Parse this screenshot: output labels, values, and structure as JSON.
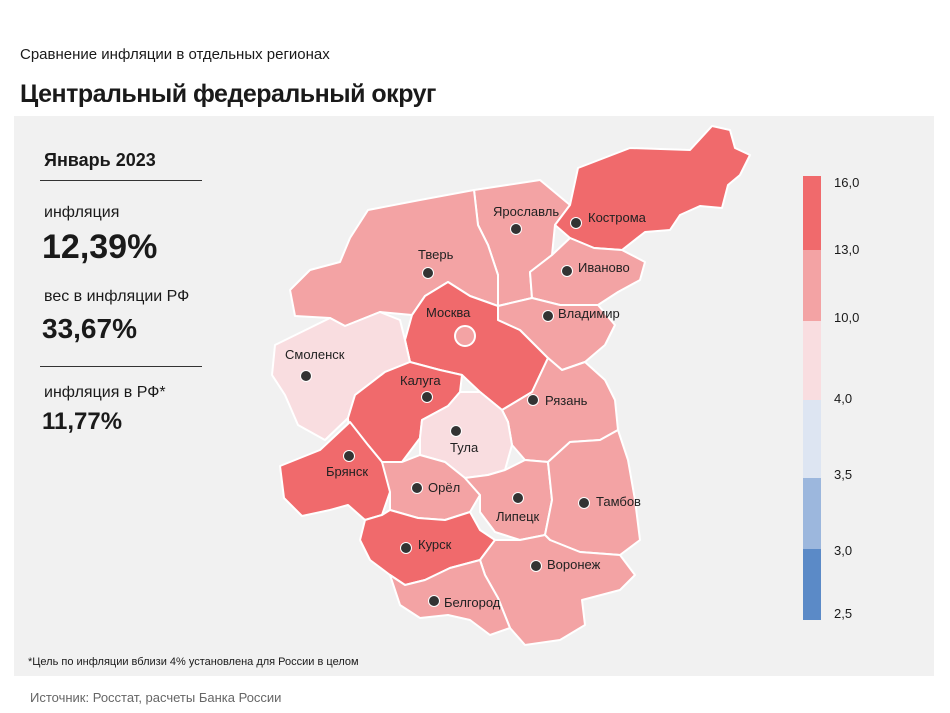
{
  "header": {
    "supertitle": "Сравнение  инфляции  в отдельных  регионах",
    "title": "Центральный федеральный округ"
  },
  "info": {
    "period": "Январь 2023",
    "inflation_label": "инфляция",
    "inflation_value": "12,39%",
    "weight_label": "вес в инфляции  РФ",
    "weight_value": "33,67%",
    "rf_label": "инфляция  в РФ*",
    "rf_value": "11,77%"
  },
  "legend": {
    "ticks": [
      "16,0",
      "13,0",
      "10,0",
      "4,0",
      "3,5",
      "3,0",
      "2,5"
    ],
    "colors": [
      "#f06a6c",
      "#f3a3a4",
      "#f9dde0",
      "#dde5f2",
      "#9cb7dd",
      "#5b8ac7"
    ]
  },
  "colors": {
    "high": "#f06a6c",
    "mid": "#f3a3a4",
    "low": "#f9dde0",
    "moscow_marker": "#f3a3a4"
  },
  "regions": [
    {
      "name": "Ярославль",
      "class": "mid"
    },
    {
      "name": "Кострома",
      "class": "high"
    },
    {
      "name": "Тверь",
      "class": "mid"
    },
    {
      "name": "Иваново",
      "class": "mid"
    },
    {
      "name": "Москва",
      "class": "high"
    },
    {
      "name": "Владимир",
      "class": "mid"
    },
    {
      "name": "Смоленск",
      "class": "low"
    },
    {
      "name": "Калуга",
      "class": "high"
    },
    {
      "name": "Рязань",
      "class": "mid"
    },
    {
      "name": "Тула",
      "class": "low"
    },
    {
      "name": "Брянск",
      "class": "high"
    },
    {
      "name": "Орёл",
      "class": "mid"
    },
    {
      "name": "Липецк",
      "class": "mid"
    },
    {
      "name": "Тамбов",
      "class": "mid"
    },
    {
      "name": "Курск",
      "class": "high"
    },
    {
      "name": "Воронеж",
      "class": "mid"
    },
    {
      "name": "Белгород",
      "class": "mid"
    }
  ],
  "footnote": "*Цель по инфляции вблизи 4% установлена для России в целом",
  "source": "Источник: Росстат, расчеты Банка России"
}
